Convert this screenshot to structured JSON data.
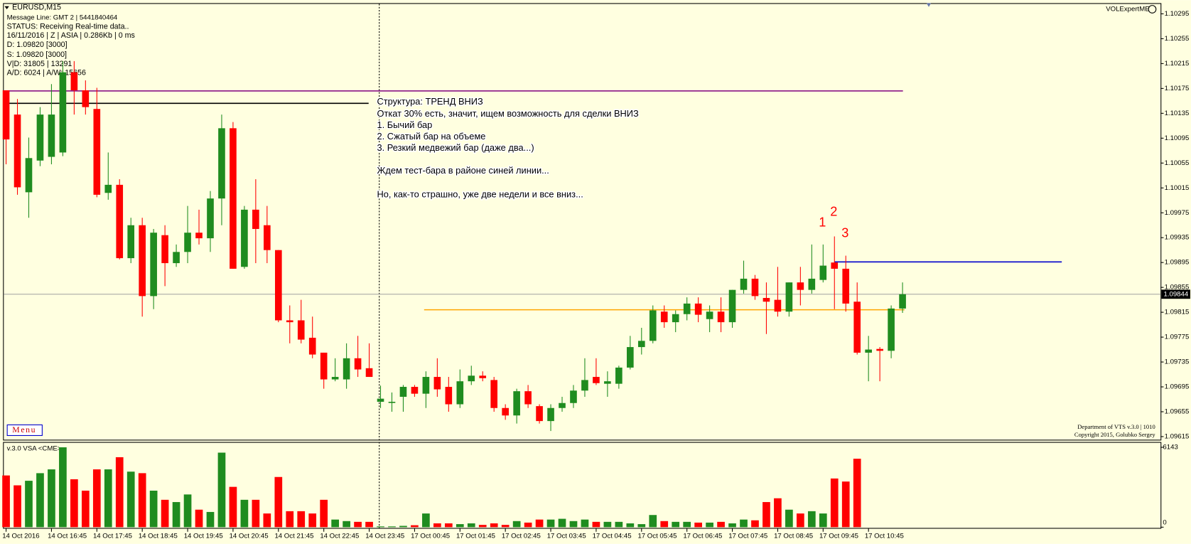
{
  "chart_data": [
    {
      "type": "candlestick",
      "title": "EURUSD,M15",
      "info_lines": [
        "Message Line: GMT 2 | 5441840464",
        "STATUS:  Receiving Real-time data..",
        "16/11/2016 | Z | ASIA | 0.286Kb | 0 ms",
        "D: 1.09820  [3000]",
        "S: 1.09820  [3000]",
        "V|D: 31805 | 13291",
        "A/D: 6024 | A/W: 15656"
      ],
      "annotations": [
        "Структура: ТРЕНД ВНИЗ",
        "Откат 30% есть, значит, ищем возможность для сделки ВНИЗ",
        "1. Бычий бар",
        "2. Сжатый бар на объеме",
        "3. Резкий медвежий бар (даже два...)",
        "Ждем тест-бара в районе синей линии...",
        "Но, как-то страшно, уже две недели и все вниз..."
      ],
      "markers": [
        "1",
        "2",
        "3"
      ],
      "indicator": "VOLExpertME",
      "footer": [
        "Department of VTS  v.3.0 | 1010",
        "Copyright 2015, Golubko Sergey"
      ],
      "menu": "Menu",
      "categories": [
        "14 Oct 2016",
        null,
        null,
        null,
        "14 Oct 16:45",
        null,
        null,
        null,
        "14 Oct 17:45",
        null,
        null,
        null,
        "14 Oct 18:45",
        null,
        null,
        null,
        "14 Oct 19:45",
        null,
        null,
        null,
        "14 Oct 20:45",
        null,
        null,
        null,
        "14 Oct 21:45",
        null,
        null,
        null,
        "14 Oct 22:45",
        null,
        null,
        null,
        "14 Oct 23:45",
        null,
        null,
        null,
        "17 Oct 00:45",
        null,
        null,
        null,
        "17 Oct 01:45",
        null,
        null,
        null,
        "17 Oct 02:45",
        null,
        null,
        null,
        "17 Oct 03:45",
        null,
        null,
        null,
        "17 Oct 04:45",
        null,
        null,
        null,
        "17 Oct 05:45",
        null,
        null,
        null,
        "17 Oct 06:45",
        null,
        null,
        null,
        "17 Oct 07:45",
        null,
        null,
        null,
        "17 Oct 08:45",
        null,
        null,
        null,
        "17 Oct 09:45",
        null,
        null,
        null,
        "17 Oct 10:45",
        null,
        null,
        null
      ],
      "open": [
        1.10172,
        1.10133,
        1.10008,
        1.10059,
        1.10065,
        1.10072,
        1.10201,
        1.10172,
        1.10142,
        1.10007,
        1.1002,
        1.09902,
        1.09955,
        1.09841,
        1.09939,
        1.09894,
        1.09912,
        1.09943,
        1.09934,
        1.09998,
        1.10111,
        1.09888,
        1.0998,
        1.09955,
        1.09915,
        1.09802,
        1.09802,
        1.09774,
        1.0975,
        1.09707,
        1.09707,
        1.09741,
        1.09725,
        1.09671,
        1.09671,
        1.09679,
        1.09695,
        1.09684,
        1.09711,
        1.09695,
        1.09667,
        1.09704,
        1.09713,
        1.09706,
        1.09661,
        1.09649,
        1.09688,
        1.09664,
        1.0964,
        1.09661,
        1.09669,
        1.09689,
        1.09711,
        1.097,
        1.097,
        1.09726,
        1.09759,
        1.09769,
        1.09816,
        1.09799,
        1.09812,
        1.09829,
        1.09804,
        1.09816,
        1.09799,
        1.09851,
        1.09869,
        1.09838,
        1.09835,
        1.09816,
        1.09863,
        1.09851,
        1.09867,
        1.09895,
        1.09885,
        1.09832,
        1.0975,
        1.09756,
        1.09753,
        1.09821
      ],
      "high": [
        1.10172,
        1.10158,
        1.10096,
        1.10145,
        1.10182,
        1.10219,
        1.10219,
        1.10188,
        1.10176,
        1.10072,
        1.10029,
        1.09967,
        1.09967,
        1.09949,
        1.09955,
        1.09924,
        1.09986,
        1.0998,
        1.1001,
        1.10133,
        1.10121,
        1.09986,
        1.10029,
        1.09986,
        1.09915,
        1.09826,
        1.09835,
        1.09808,
        1.0975,
        1.09741,
        1.09765,
        1.09777,
        1.09765,
        1.09697,
        1.09686,
        1.09698,
        1.09698,
        1.0972,
        1.09741,
        1.09711,
        1.09723,
        1.09729,
        1.0972,
        1.09711,
        1.09667,
        1.09692,
        1.09698,
        1.09667,
        1.09667,
        1.09679,
        1.09698,
        1.09741,
        1.09741,
        1.0972,
        1.09729,
        1.09777,
        1.0979,
        1.09826,
        1.09826,
        1.09818,
        1.09839,
        1.09839,
        1.09826,
        1.09839,
        1.09851,
        1.09898,
        1.09875,
        1.09863,
        1.09888,
        1.09863,
        1.09888,
        1.09924,
        1.09924,
        1.09937,
        1.09906,
        1.09863,
        1.09777,
        1.09759,
        1.09826,
        1.09863
      ],
      "low": [
        1.10053,
        1.10004,
        1.09967,
        1.1005,
        1.10053,
        1.10066,
        1.10133,
        1.10133,
        1.1,
        1.09996,
        1.099,
        1.09894,
        1.09808,
        1.0982,
        1.09857,
        1.09888,
        1.09894,
        1.09924,
        1.09912,
        1.09955,
        1.09885,
        1.09885,
        1.09894,
        1.09894,
        1.09799,
        1.09765,
        1.09765,
        1.09741,
        1.09692,
        1.09704,
        1.09692,
        1.09711,
        1.09711,
        1.09661,
        1.09655,
        1.09655,
        1.09679,
        1.09661,
        1.09679,
        1.09655,
        1.09661,
        1.09698,
        1.09704,
        1.09655,
        1.09642,
        1.09636,
        1.09661,
        1.09636,
        1.09624,
        1.09655,
        1.09661,
        1.09679,
        1.09698,
        1.09679,
        1.09692,
        1.09723,
        1.09747,
        1.09765,
        1.0979,
        1.09783,
        1.09802,
        1.09799,
        1.09783,
        1.09783,
        1.0979,
        1.09845,
        1.09835,
        1.0978,
        1.09808,
        1.09808,
        1.09826,
        1.09845,
        1.09863,
        1.0982,
        1.09816,
        1.09747,
        1.09704,
        1.09704,
        1.09741,
        1.09814
      ],
      "close": [
        1.10093,
        1.10016,
        1.10063,
        1.10133,
        1.10133,
        1.10201,
        1.10172,
        1.10145,
        1.10004,
        1.1002,
        1.09902,
        1.09955,
        1.09841,
        1.09943,
        1.09894,
        1.09912,
        1.09943,
        1.09934,
        1.09998,
        1.10111,
        1.09885,
        1.0998,
        1.09949,
        1.09915,
        1.09802,
        1.09799,
        1.09771,
        1.09747,
        1.09707,
        1.09711,
        1.09741,
        1.09723,
        1.09711,
        1.09676,
        1.09671,
        1.09695,
        1.09684,
        1.09711,
        1.09691,
        1.09667,
        1.09704,
        1.09713,
        1.09709,
        1.09661,
        1.09649,
        1.09688,
        1.09667,
        1.0964,
        1.09661,
        1.09669,
        1.09689,
        1.09706,
        1.09701,
        1.09704,
        1.09726,
        1.09759,
        1.09769,
        1.09818,
        1.09799,
        1.09812,
        1.09829,
        1.09811,
        1.09816,
        1.09799,
        1.09851,
        1.09869,
        1.09841,
        1.09832,
        1.09816,
        1.09863,
        1.09851,
        1.09869,
        1.0989,
        1.09885,
        1.09829,
        1.0975,
        1.09755,
        1.09753,
        1.09821,
        1.09844
      ],
      "up_color": "#1f8c1f",
      "down_color": "#ff0000",
      "levels": [
        {
          "value": 1.10171,
          "color": "#800080"
        },
        {
          "value": 1.10151,
          "color": "#000000"
        },
        {
          "value": 1.09896,
          "color": "#0000cc"
        },
        {
          "value": 1.09819,
          "color": "#ffa500"
        }
      ],
      "current_price": 1.09844,
      "ylim": [
        1.0961,
        1.10311
      ],
      "yticks": [
        1.09615,
        1.09655,
        1.09695,
        1.09735,
        1.09775,
        1.09815,
        1.09855,
        1.09895,
        1.09935,
        1.09975,
        1.10015,
        1.10055,
        1.10095,
        1.10135,
        1.10175,
        1.10215,
        1.10255,
        1.10295
      ]
    },
    {
      "type": "bar",
      "title": "v.3.0 VSA <CME>",
      "values": [
        3978,
        3218,
        3569,
        4154,
        4446,
        6143,
        3686,
        2808,
        4446,
        4446,
        5382,
        4271,
        4154,
        2808,
        2106,
        1931,
        2516,
        1346,
        1170,
        5733,
        3101,
        2106,
        2106,
        1053,
        3861,
        1229,
        1229,
        1053,
        2106,
        585,
        468,
        410,
        410,
        60,
        60,
        100,
        150,
        1053,
        293,
        293,
        234,
        293,
        176,
        293,
        176,
        468,
        351,
        585,
        585,
        644,
        468,
        585,
        410,
        410,
        410,
        293,
        234,
        936,
        468,
        410,
        410,
        351,
        351,
        410,
        293,
        585,
        527,
        1931,
        2223,
        1346,
        1053,
        1229,
        1053,
        3744,
        3510,
        5265,
        null,
        null,
        null,
        null
      ],
      "ylim": [
        0,
        6143
      ],
      "yticks": [
        0,
        6143
      ]
    }
  ]
}
